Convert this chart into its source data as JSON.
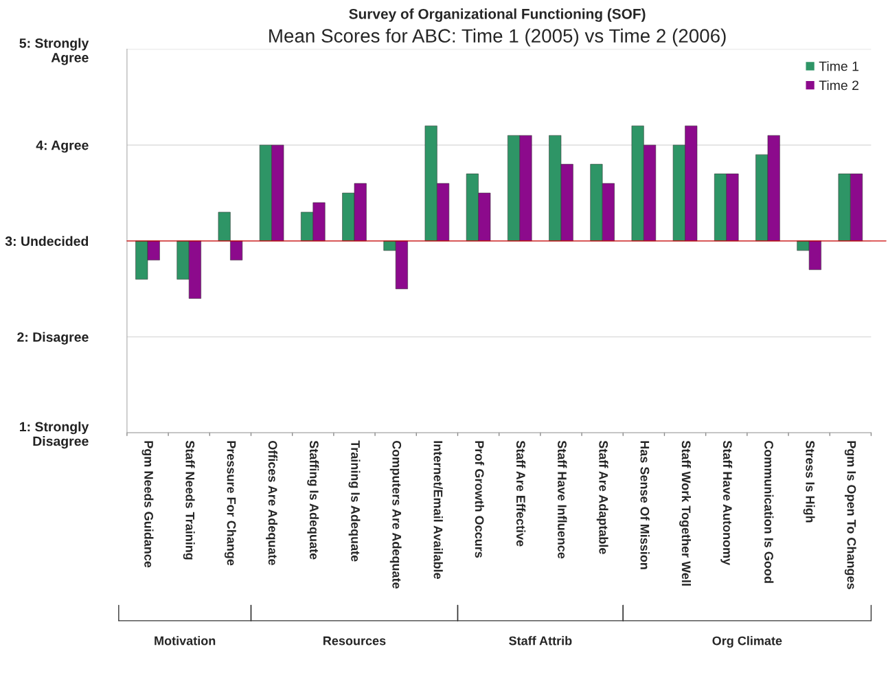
{
  "chart_data": {
    "type": "bar",
    "title": "Survey of Organizational Functioning (SOF)",
    "subtitle": "Mean Scores for ABC: Time 1 (2005) vs Time 2 (2006)",
    "categories": [
      "Pgm Needs Guidance",
      "Staff Needs Training",
      "Pressure For Change",
      "Offices Are Adequate",
      "Staffing Is Adequate",
      "Training Is Adequate",
      "Computers Are Adequate",
      "Internet/Email Available",
      "Prof Growth Occurs",
      "Staff Are Effective",
      "Staff Have Influence",
      "Staff Are Adaptable",
      "Has Sense Of Mission",
      "Staff Work Together Well",
      "Staff Have Autonomy",
      "Communication Is Good",
      "Stress Is High",
      "Pgm Is Open To Changes"
    ],
    "series": [
      {
        "name": "Time 1",
        "color": "#2e9566",
        "base": [
          3,
          3,
          3,
          3,
          3,
          3,
          3,
          3,
          3,
          3,
          3,
          3,
          3,
          3,
          3,
          3,
          3,
          3
        ],
        "values": [
          -0.4,
          -0.4,
          0.3,
          1.0,
          0.3,
          0.5,
          -0.1,
          1.2,
          0.7,
          1.1,
          1.1,
          0.8,
          1.2,
          1.0,
          0.7,
          0.9,
          -0.1,
          0.7
        ]
      },
      {
        "name": "Time 2",
        "color": "#8c0a8c",
        "base": [
          3,
          3,
          3,
          3,
          3,
          3,
          3,
          3,
          3,
          3,
          3,
          3,
          3,
          3,
          3,
          3,
          3,
          3
        ],
        "values": [
          -0.2,
          -0.6,
          -0.2,
          1.0,
          0.4,
          0.6,
          -0.5,
          0.6,
          0.5,
          1.1,
          0.8,
          0.6,
          1.0,
          1.2,
          0.7,
          1.1,
          -0.3,
          0.7
        ]
      }
    ],
    "ylim": [
      1,
      5
    ],
    "yticks": [
      {
        "value": 1,
        "label": "1: Strongly\nDisagree"
      },
      {
        "value": 2,
        "label": "2: Disagree"
      },
      {
        "value": 3,
        "label": "3: Undecided"
      },
      {
        "value": 4,
        "label": "4: Agree"
      },
      {
        "value": 5,
        "label": "5: Strongly\nAgree"
      }
    ],
    "ref_lines": [
      {
        "axis": "y",
        "value": 3,
        "color": "#cc0000"
      }
    ],
    "grid": "y",
    "legend": "top right",
    "annotations": [
      "Motivation",
      "Resources",
      "Staff Attrib",
      "Org Climate"
    ]
  }
}
